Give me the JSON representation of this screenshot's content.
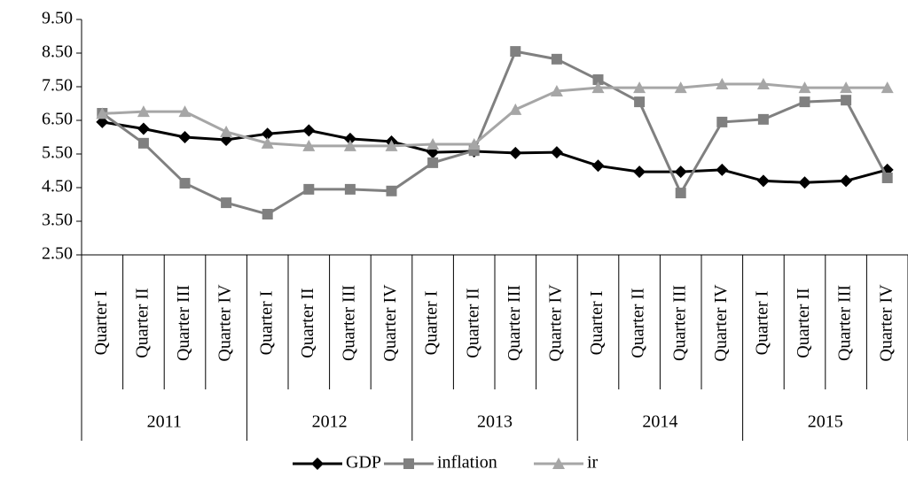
{
  "chart_data": {
    "type": "line",
    "categories": [
      "Quarter I",
      "Quarter II",
      "Quarter III",
      "Quarter IV",
      "Quarter I",
      "Quarter II",
      "Quarter III",
      "Quarter IV",
      "Quarter I",
      "Quarter II",
      "Quarter III",
      "Quarter IV",
      "Quarter I",
      "Quarter II",
      "Quarter III",
      "Quarter IV",
      "Quarter I",
      "Quarter II",
      "Quarter III",
      "Quarter IV"
    ],
    "category_groups": [
      "2011",
      "2012",
      "2013",
      "2014",
      "2015"
    ],
    "series": [
      {
        "name": "GDP",
        "color": "#000000",
        "marker": "diamond",
        "values": [
          6.45,
          6.25,
          6.0,
          5.92,
          6.1,
          6.2,
          5.95,
          5.87,
          5.55,
          5.58,
          5.53,
          5.55,
          5.15,
          4.97,
          4.97,
          5.03,
          4.7,
          4.65,
          4.7,
          5.03
        ]
      },
      {
        "name": "inflation",
        "color": "#808080",
        "marker": "square",
        "values": [
          6.71,
          5.82,
          4.63,
          4.05,
          3.71,
          4.45,
          4.45,
          4.4,
          5.24,
          5.6,
          8.55,
          8.32,
          7.71,
          7.05,
          4.34,
          6.45,
          6.53,
          7.05,
          7.1,
          4.79
        ]
      },
      {
        "name": "ir",
        "color": "#a6a6a6",
        "marker": "triangle",
        "values": [
          6.7,
          6.76,
          6.76,
          6.16,
          5.82,
          5.74,
          5.74,
          5.74,
          5.79,
          5.79,
          6.82,
          7.37,
          7.47,
          7.47,
          7.47,
          7.58,
          7.58,
          7.47,
          7.47,
          7.47
        ]
      }
    ],
    "ylim": [
      2.5,
      9.5
    ],
    "yticks": [
      {
        "value": 2.5,
        "label": "2.50"
      },
      {
        "value": 3.5,
        "label": "3.50"
      },
      {
        "value": 4.5,
        "label": "4.50"
      },
      {
        "value": 5.5,
        "label": "5.50"
      },
      {
        "value": 6.5,
        "label": "6.50"
      },
      {
        "value": 7.5,
        "label": "7.50"
      },
      {
        "value": 8.5,
        "label": "8.50"
      },
      {
        "value": 9.5,
        "label": "9.50"
      }
    ],
    "grid": false,
    "legend": "bottom"
  }
}
